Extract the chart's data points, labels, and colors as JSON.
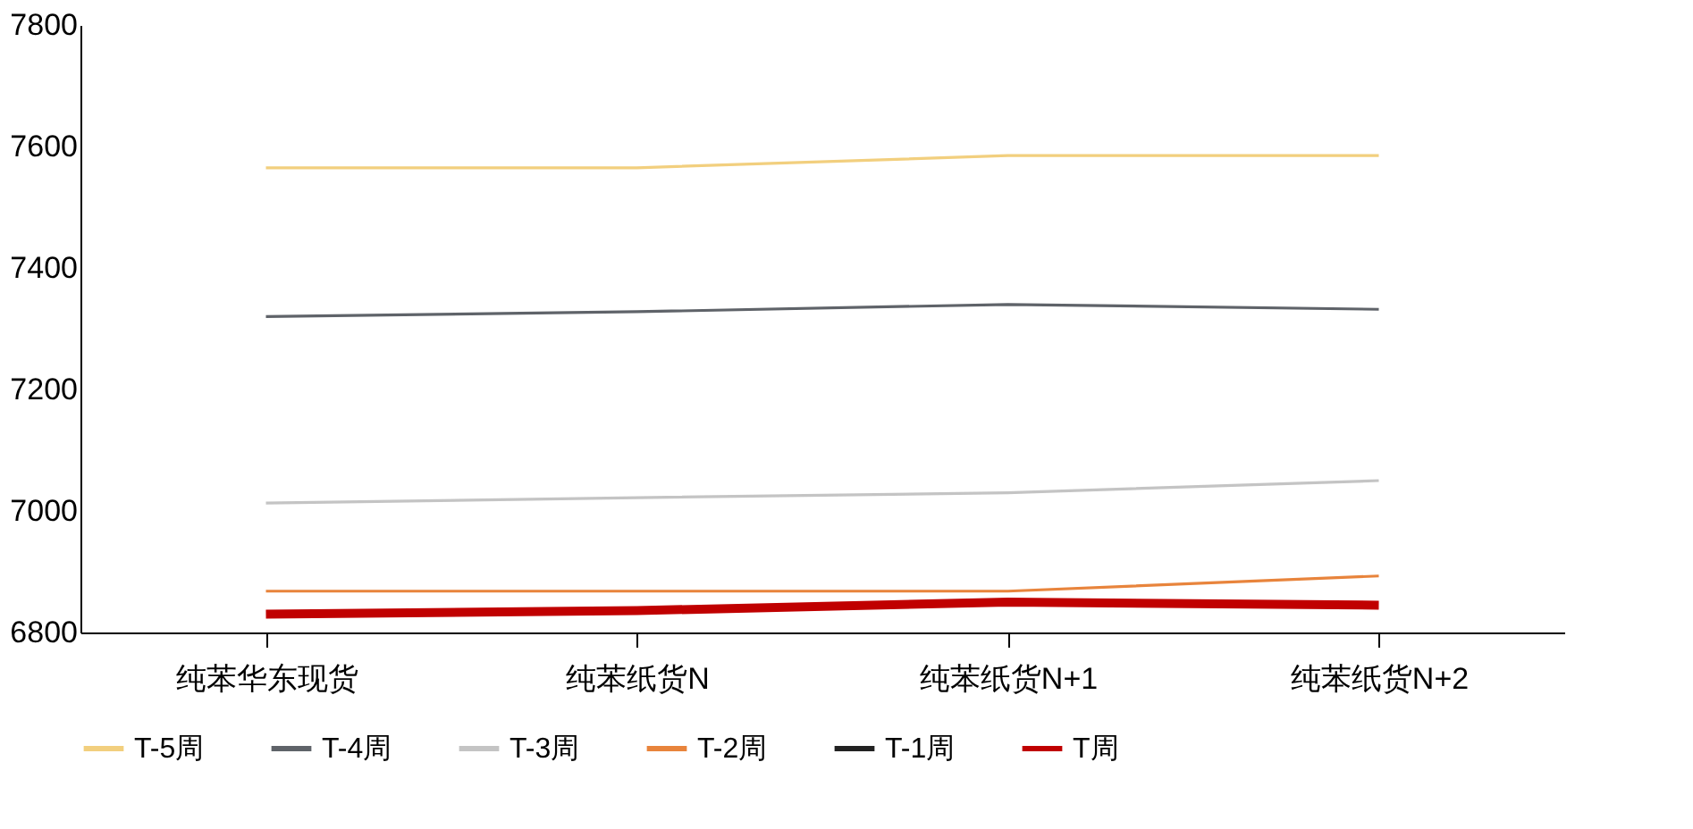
{
  "chart_data": {
    "type": "line",
    "categories": [
      "纯苯华东现货",
      "纯苯纸货N",
      "纯苯纸货N+1",
      "纯苯纸货N+2"
    ],
    "series": [
      {
        "name": "T-5周",
        "color": "#f2cf7e",
        "values": [
          7565,
          7565,
          7585,
          7585
        ]
      },
      {
        "name": "T-4周",
        "color": "#5f6369",
        "values": [
          7320,
          7328,
          7340,
          7332
        ]
      },
      {
        "name": "T-3周",
        "color": "#c4c4c4",
        "values": [
          7013,
          7022,
          7030,
          7050
        ]
      },
      {
        "name": "T-2周",
        "color": "#e8843c",
        "values": [
          6868,
          6868,
          6868,
          6893
        ]
      },
      {
        "name": "T-1周",
        "color": "#222222",
        "values": [
          null,
          null,
          null,
          null
        ]
      },
      {
        "name": "T周",
        "color": "#c00000",
        "values": [
          6830,
          6836,
          6850,
          6845
        ]
      }
    ],
    "ylim": [
      6800,
      7800
    ],
    "yticks": [
      6800,
      7000,
      7200,
      7400,
      7600,
      7800
    ],
    "grid": false,
    "legend": "bottom",
    "marker": "none",
    "line_style": "solid"
  }
}
